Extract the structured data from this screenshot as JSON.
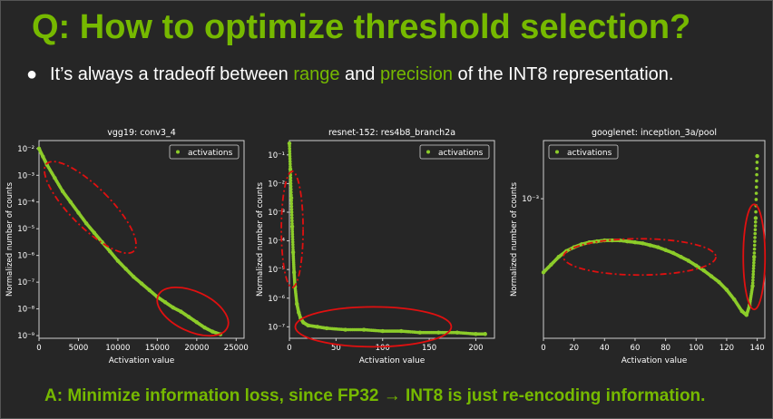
{
  "slide": {
    "title": "Q: How to optimize threshold selection?",
    "bullet": {
      "marker": "●",
      "prefix": "It’s always a tradeoff between ",
      "range_word": "range",
      "middle": " and ",
      "precision_word": "precision",
      "suffix": " of the INT8 representation."
    },
    "answer": "A: Minimize information loss, since FP32 → INT8 is just re-encoding information."
  },
  "colors": {
    "background": "#262626",
    "accent": "#76b900",
    "text": "#ffffff",
    "marker": "#8ccc2a",
    "circle": "#e01010"
  },
  "chart_data": [
    {
      "type": "scatter",
      "title": "vgg19: conv3_4",
      "xlabel": "Activation value",
      "ylabel": "Normalized number of counts",
      "legend": "activations",
      "legend_position": "top-right",
      "y_scale": "log",
      "xlim": [
        0,
        26000
      ],
      "ylim_log10": [
        -9.1,
        -1.7
      ],
      "x_ticks": [
        0,
        5000,
        10000,
        15000,
        20000,
        25000
      ],
      "x_tick_labels": [
        "0",
        "5000",
        "10000",
        "15000",
        "20000",
        "25000"
      ],
      "y_ticks_log10": [
        -9,
        -8,
        -7,
        -6,
        -5,
        -4,
        -3,
        -2
      ],
      "y_tick_labels": [
        "10⁻⁹",
        "10⁻⁸",
        "10⁻⁷",
        "10⁻⁶",
        "10⁻⁵",
        "10⁻⁴",
        "10⁻³",
        "10⁻²"
      ],
      "series": [
        {
          "name": "activations",
          "x": [
            0,
            500,
            1000,
            2000,
            3000,
            4000,
            5000,
            6000,
            7000,
            8000,
            9000,
            10000,
            11000,
            12000,
            13000,
            14000,
            15000,
            16000,
            17000,
            18000,
            19000,
            20000,
            21000,
            22000,
            23000
          ],
          "y_log10": [
            -2.0,
            -2.3,
            -2.6,
            -3.1,
            -3.6,
            -4.0,
            -4.4,
            -4.8,
            -5.15,
            -5.5,
            -5.85,
            -6.2,
            -6.5,
            -6.8,
            -7.05,
            -7.3,
            -7.55,
            -7.75,
            -7.95,
            -8.1,
            -8.3,
            -8.5,
            -8.7,
            -8.85,
            -8.95
          ]
        }
      ],
      "annotations": [
        {
          "shape": "ellipse",
          "style": "dash-dot",
          "label": "range",
          "x_center": 6500,
          "y_center_log10": -4.2
        },
        {
          "shape": "ellipse",
          "style": "solid",
          "label": "precision",
          "x_center": 19500,
          "y_center_log10": -8.1
        }
      ]
    },
    {
      "type": "scatter",
      "title": "resnet-152: res4b8_branch2a",
      "xlabel": "Activation value",
      "ylabel": "Normalized number of counts",
      "legend": "activations",
      "legend_position": "top-right",
      "y_scale": "log",
      "xlim": [
        0,
        220
      ],
      "ylim_log10": [
        -7.4,
        -0.5
      ],
      "x_ticks": [
        0,
        50,
        100,
        150,
        200
      ],
      "x_tick_labels": [
        "0",
        "50",
        "100",
        "150",
        "200"
      ],
      "y_ticks_log10": [
        -7,
        -6,
        -5,
        -4,
        -3,
        -2,
        -1
      ],
      "y_tick_labels": [
        "10⁻⁷",
        "10⁻⁶",
        "10⁻⁵",
        "10⁻⁴",
        "10⁻³",
        "10⁻²",
        "10⁻¹"
      ],
      "series": [
        {
          "name": "activations",
          "x": [
            0,
            1,
            2,
            3,
            4,
            5,
            6,
            8,
            10,
            12,
            15,
            20,
            30,
            40,
            60,
            80,
            100,
            120,
            140,
            160,
            180,
            200,
            210
          ],
          "y_log10": [
            -0.6,
            -1.5,
            -2.5,
            -3.5,
            -4.4,
            -5.1,
            -5.6,
            -6.2,
            -6.5,
            -6.7,
            -6.85,
            -6.95,
            -7.0,
            -7.05,
            -7.1,
            -7.1,
            -7.15,
            -7.15,
            -7.2,
            -7.2,
            -7.2,
            -7.25,
            -7.25
          ]
        }
      ],
      "annotations": [
        {
          "shape": "ellipse",
          "style": "dash-dot",
          "label": "range",
          "x_center": 3,
          "y_center_log10": -3.6
        },
        {
          "shape": "ellipse",
          "style": "solid",
          "label": "precision",
          "x_center": 90,
          "y_center_log10": -7.0
        }
      ]
    },
    {
      "type": "scatter",
      "title": "googlenet: inception_3a/pool",
      "xlabel": "Activation value",
      "ylabel": "Normalized number of counts",
      "legend": "activations",
      "legend_position": "top-left",
      "y_scale": "log",
      "xlim": [
        0,
        145
      ],
      "ylim_log10": [
        -3.72,
        -2.7
      ],
      "x_ticks": [
        0,
        20,
        40,
        60,
        80,
        100,
        120,
        140
      ],
      "x_tick_labels": [
        "0",
        "20",
        "40",
        "60",
        "80",
        "100",
        "120",
        "140"
      ],
      "y_ticks_log10": [
        -3
      ],
      "y_tick_labels": [
        "10⁻³"
      ],
      "series": [
        {
          "name": "activations",
          "x": [
            0,
            5,
            10,
            15,
            20,
            25,
            30,
            35,
            40,
            45,
            50,
            55,
            60,
            65,
            70,
            75,
            80,
            85,
            90,
            95,
            100,
            105,
            110,
            115,
            120,
            125,
            130,
            133,
            135,
            137,
            138,
            139,
            140
          ],
          "y_log10": [
            -3.38,
            -3.34,
            -3.3,
            -3.27,
            -3.25,
            -3.235,
            -3.225,
            -3.22,
            -3.215,
            -3.215,
            -3.215,
            -3.22,
            -3.225,
            -3.23,
            -3.24,
            -3.25,
            -3.265,
            -3.28,
            -3.3,
            -3.32,
            -3.345,
            -3.37,
            -3.4,
            -3.43,
            -3.47,
            -3.52,
            -3.58,
            -3.6,
            -3.55,
            -3.45,
            -3.3,
            -3.1,
            -2.78
          ]
        }
      ],
      "annotations": [
        {
          "shape": "ellipse",
          "style": "dash-dot",
          "label": "range",
          "x_center": 63,
          "y_center_log10": -3.3
        },
        {
          "shape": "ellipse",
          "style": "solid",
          "label": "precision",
          "x_center": 138,
          "y_center_log10": -3.3
        }
      ]
    }
  ]
}
